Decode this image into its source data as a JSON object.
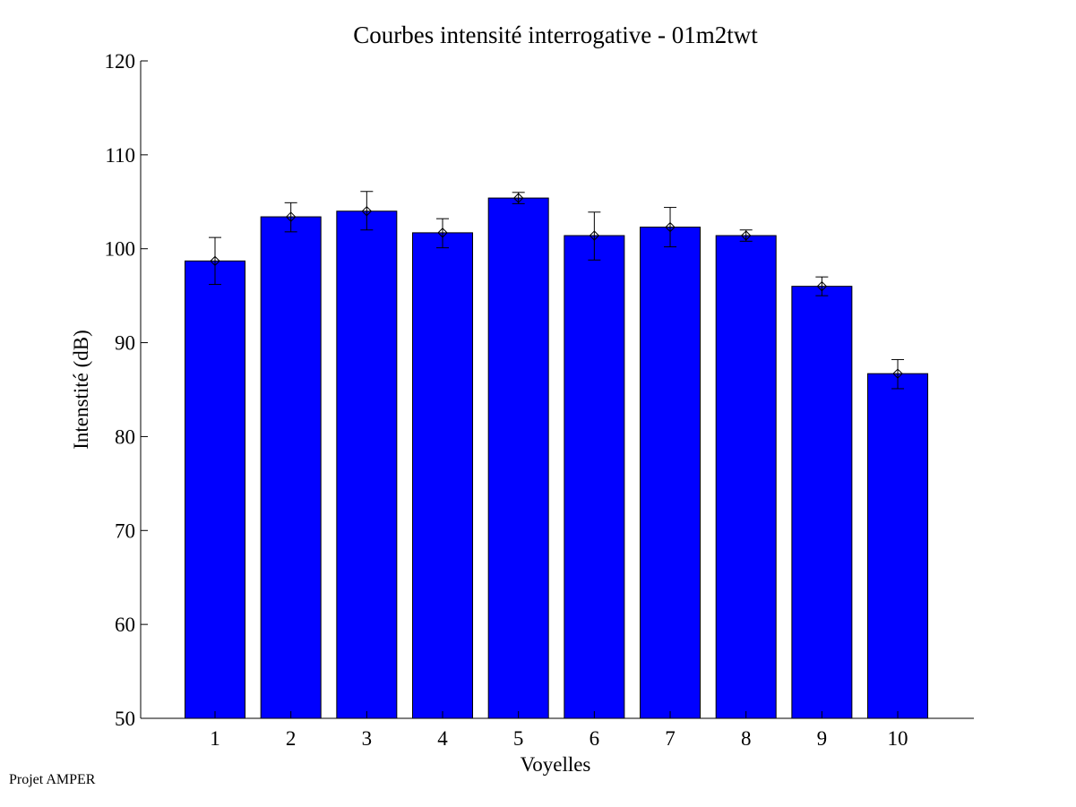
{
  "footer": {
    "text": "Projet AMPER"
  },
  "chart_data": {
    "type": "bar",
    "title": "Courbes intensité interrogative - 01m2twt",
    "xlabel": "Voyelles",
    "ylabel": "Intenstité (dB)",
    "categories": [
      "1",
      "2",
      "3",
      "4",
      "5",
      "6",
      "7",
      "8",
      "9",
      "10"
    ],
    "values": [
      98.7,
      103.4,
      104.0,
      101.7,
      105.4,
      101.4,
      102.3,
      101.4,
      96.0,
      86.7
    ],
    "error_low": [
      96.2,
      101.8,
      102.0,
      100.1,
      104.8,
      98.8,
      100.2,
      100.8,
      95.0,
      85.1
    ],
    "error_high": [
      101.2,
      104.9,
      106.1,
      103.2,
      106.0,
      103.9,
      104.4,
      102.0,
      97.0,
      88.2
    ],
    "ylim": [
      50,
      120
    ],
    "yticks": [
      50,
      60,
      70,
      80,
      90,
      100,
      110,
      120
    ],
    "bar_color": "#0000ff",
    "grid": false,
    "legend": "none"
  }
}
